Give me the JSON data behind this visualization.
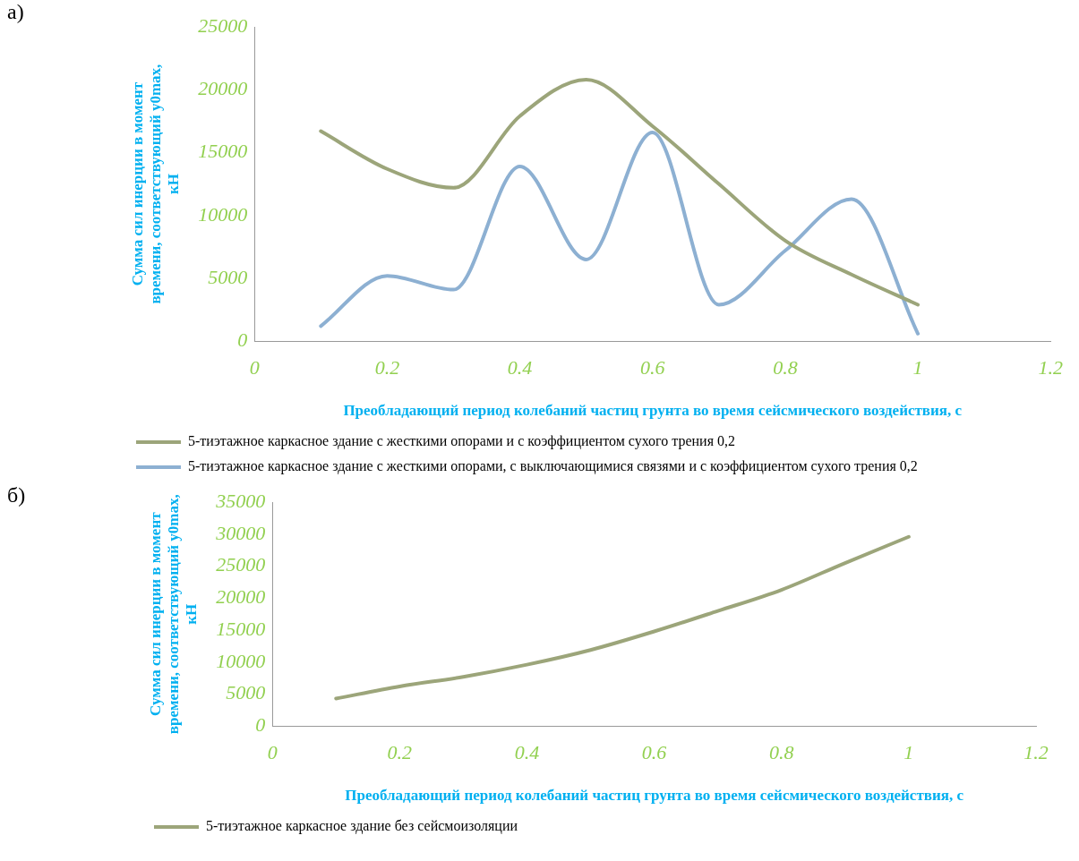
{
  "chart_data": [
    {
      "type": "line",
      "annotations": [
        "а)"
      ],
      "x": [
        0.1,
        0.2,
        0.3,
        0.4,
        0.5,
        0.6,
        0.7,
        0.8,
        0.9,
        1.0
      ],
      "series": [
        {
          "name": "5-тиэтажное каркасное здание с жесткими опорами и с коэффициентом сухого трения 0,2",
          "color": "#9ca57a",
          "values": [
            16700,
            13700,
            12200,
            17900,
            20800,
            17100,
            12500,
            8000,
            5300,
            2900
          ]
        },
        {
          "name": "5-тиэтажное каркасное здание с жесткими опорами, с выключающимися связями и с коэффициентом сухого трения 0,2",
          "color": "#8db0d2",
          "values": [
            1200,
            5200,
            4100,
            13900,
            6500,
            16600,
            2900,
            7200,
            11300,
            600
          ]
        }
      ],
      "xlim": [
        0,
        1.2
      ],
      "xticks": [
        0,
        0.2,
        0.4,
        0.6,
        0.8,
        1,
        1.2
      ],
      "ylim": [
        0,
        25000
      ],
      "yticks": [
        0,
        5000,
        10000,
        15000,
        20000,
        25000
      ],
      "xlabel": "Преобладающий период колебаний частиц грунта во время сейсмического воздействия, с",
      "ylabel": "Сумма сил инерции в момент времени, соответствующий y0max, кН",
      "legend": "bottom",
      "marker": "none"
    },
    {
      "type": "line",
      "annotations": [
        "б)"
      ],
      "x": [
        0.1,
        0.2,
        0.3,
        0.4,
        0.5,
        0.6,
        0.7,
        0.8,
        0.9,
        1.0
      ],
      "series": [
        {
          "name": "5-тиэтажное каркасное здание без сейсмоизоляции",
          "color": "#9ca57a",
          "values": [
            4300,
            6200,
            7700,
            9600,
            11900,
            14800,
            18000,
            21300,
            25500,
            29600
          ]
        }
      ],
      "xlim": [
        0,
        1.2
      ],
      "xticks": [
        0,
        0.2,
        0.4,
        0.6,
        0.8,
        1,
        1.2
      ],
      "ylim": [
        0,
        35000
      ],
      "yticks": [
        0,
        5000,
        10000,
        15000,
        20000,
        25000,
        30000,
        35000
      ],
      "xlabel": "Преобладающий период колебаний частиц грунта во время сейсмического воздействия, с",
      "ylabel": "Сумма сил инерции в момент времени, соответствующий y0max, кН",
      "legend": "bottom",
      "marker": "none"
    }
  ]
}
